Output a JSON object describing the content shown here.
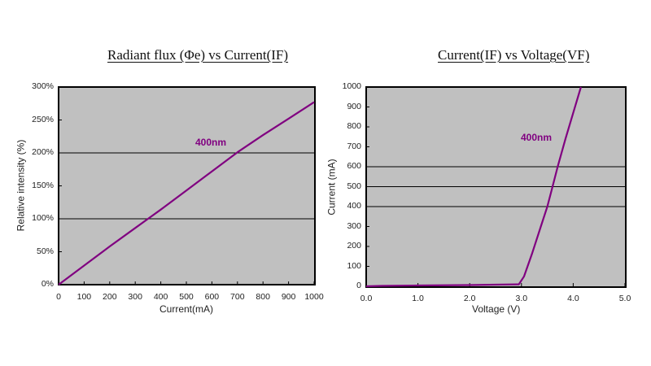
{
  "chart_data": [
    {
      "type": "line",
      "title": "Radiant flux (Φe) vs Current(IF)",
      "xlabel": "Current(mA)",
      "ylabel": "Relative intensity (%)",
      "xlim": [
        0,
        1000
      ],
      "ylim": [
        0,
        300
      ],
      "x_ticks": [
        "0",
        "100",
        "200",
        "300",
        "400",
        "500",
        "600",
        "700",
        "800",
        "900",
        "1000"
      ],
      "y_ticks": [
        "0%",
        "50%",
        "100%",
        "150%",
        "200%",
        "250%",
        "300%"
      ],
      "grid_lines_y": [
        100,
        200
      ],
      "series": [
        {
          "name": "400nm",
          "color": "#800080",
          "x": [
            0,
            100,
            200,
            300,
            350,
            400,
            500,
            600,
            700,
            800,
            900,
            1000
          ],
          "y": [
            0,
            29,
            58,
            86,
            100,
            114,
            143,
            172,
            201,
            227,
            252,
            277
          ]
        }
      ],
      "annotations": [
        {
          "text": "400nm",
          "x": 560,
          "y": 215
        }
      ]
    },
    {
      "type": "line",
      "title": "Current(IF) vs Voltage(VF)",
      "xlabel": "Voltage (V)",
      "ylabel": "Current (mA)",
      "xlim": [
        0,
        5
      ],
      "ylim": [
        0,
        1000
      ],
      "x_ticks": [
        "0.0",
        "1.0",
        "2.0",
        "3.0",
        "4.0",
        "5.0"
      ],
      "y_ticks": [
        "0",
        "100",
        "200",
        "300",
        "400",
        "500",
        "600",
        "700",
        "800",
        "900",
        "1000"
      ],
      "grid_lines_y": [
        400,
        500,
        600
      ],
      "series": [
        {
          "name": "400nm",
          "color": "#800080",
          "x": [
            0.0,
            0.3,
            1.0,
            2.0,
            2.5,
            2.95,
            3.05,
            3.2,
            3.4,
            3.5,
            3.6,
            3.7,
            3.85,
            4.0,
            4.15
          ],
          "y": [
            0,
            2,
            4,
            6,
            8,
            10,
            50,
            160,
            320,
            400,
            500,
            600,
            740,
            870,
            1000
          ]
        }
      ],
      "annotations": [
        {
          "text": "400nm",
          "x": 3.45,
          "y": 750
        }
      ]
    }
  ],
  "left": {
    "title": "Radiant flux (Φe) vs Current(IF)",
    "xlabel": "Current(mA)",
    "ylabel": "Relative intensity (%)",
    "series_label": "400nm",
    "x_ticks": [
      "0",
      "100",
      "200",
      "300",
      "400",
      "500",
      "600",
      "700",
      "800",
      "900",
      "1000"
    ],
    "y_ticks": [
      "0%",
      "50%",
      "100%",
      "150%",
      "200%",
      "250%",
      "300%"
    ]
  },
  "right": {
    "title": "Current(IF) vs Voltage(VF)",
    "xlabel": "Voltage (V)",
    "ylabel": "Current (mA)",
    "series_label": "400nm",
    "x_ticks": [
      "0.0",
      "1.0",
      "2.0",
      "3.0",
      "4.0",
      "5.0"
    ],
    "y_ticks": [
      "0",
      "100",
      "200",
      "300",
      "400",
      "500",
      "600",
      "700",
      "800",
      "900",
      "1000"
    ]
  },
  "colors": {
    "plot_bg": "#c0c0c0",
    "series": "#800080",
    "grid": "#000000"
  }
}
